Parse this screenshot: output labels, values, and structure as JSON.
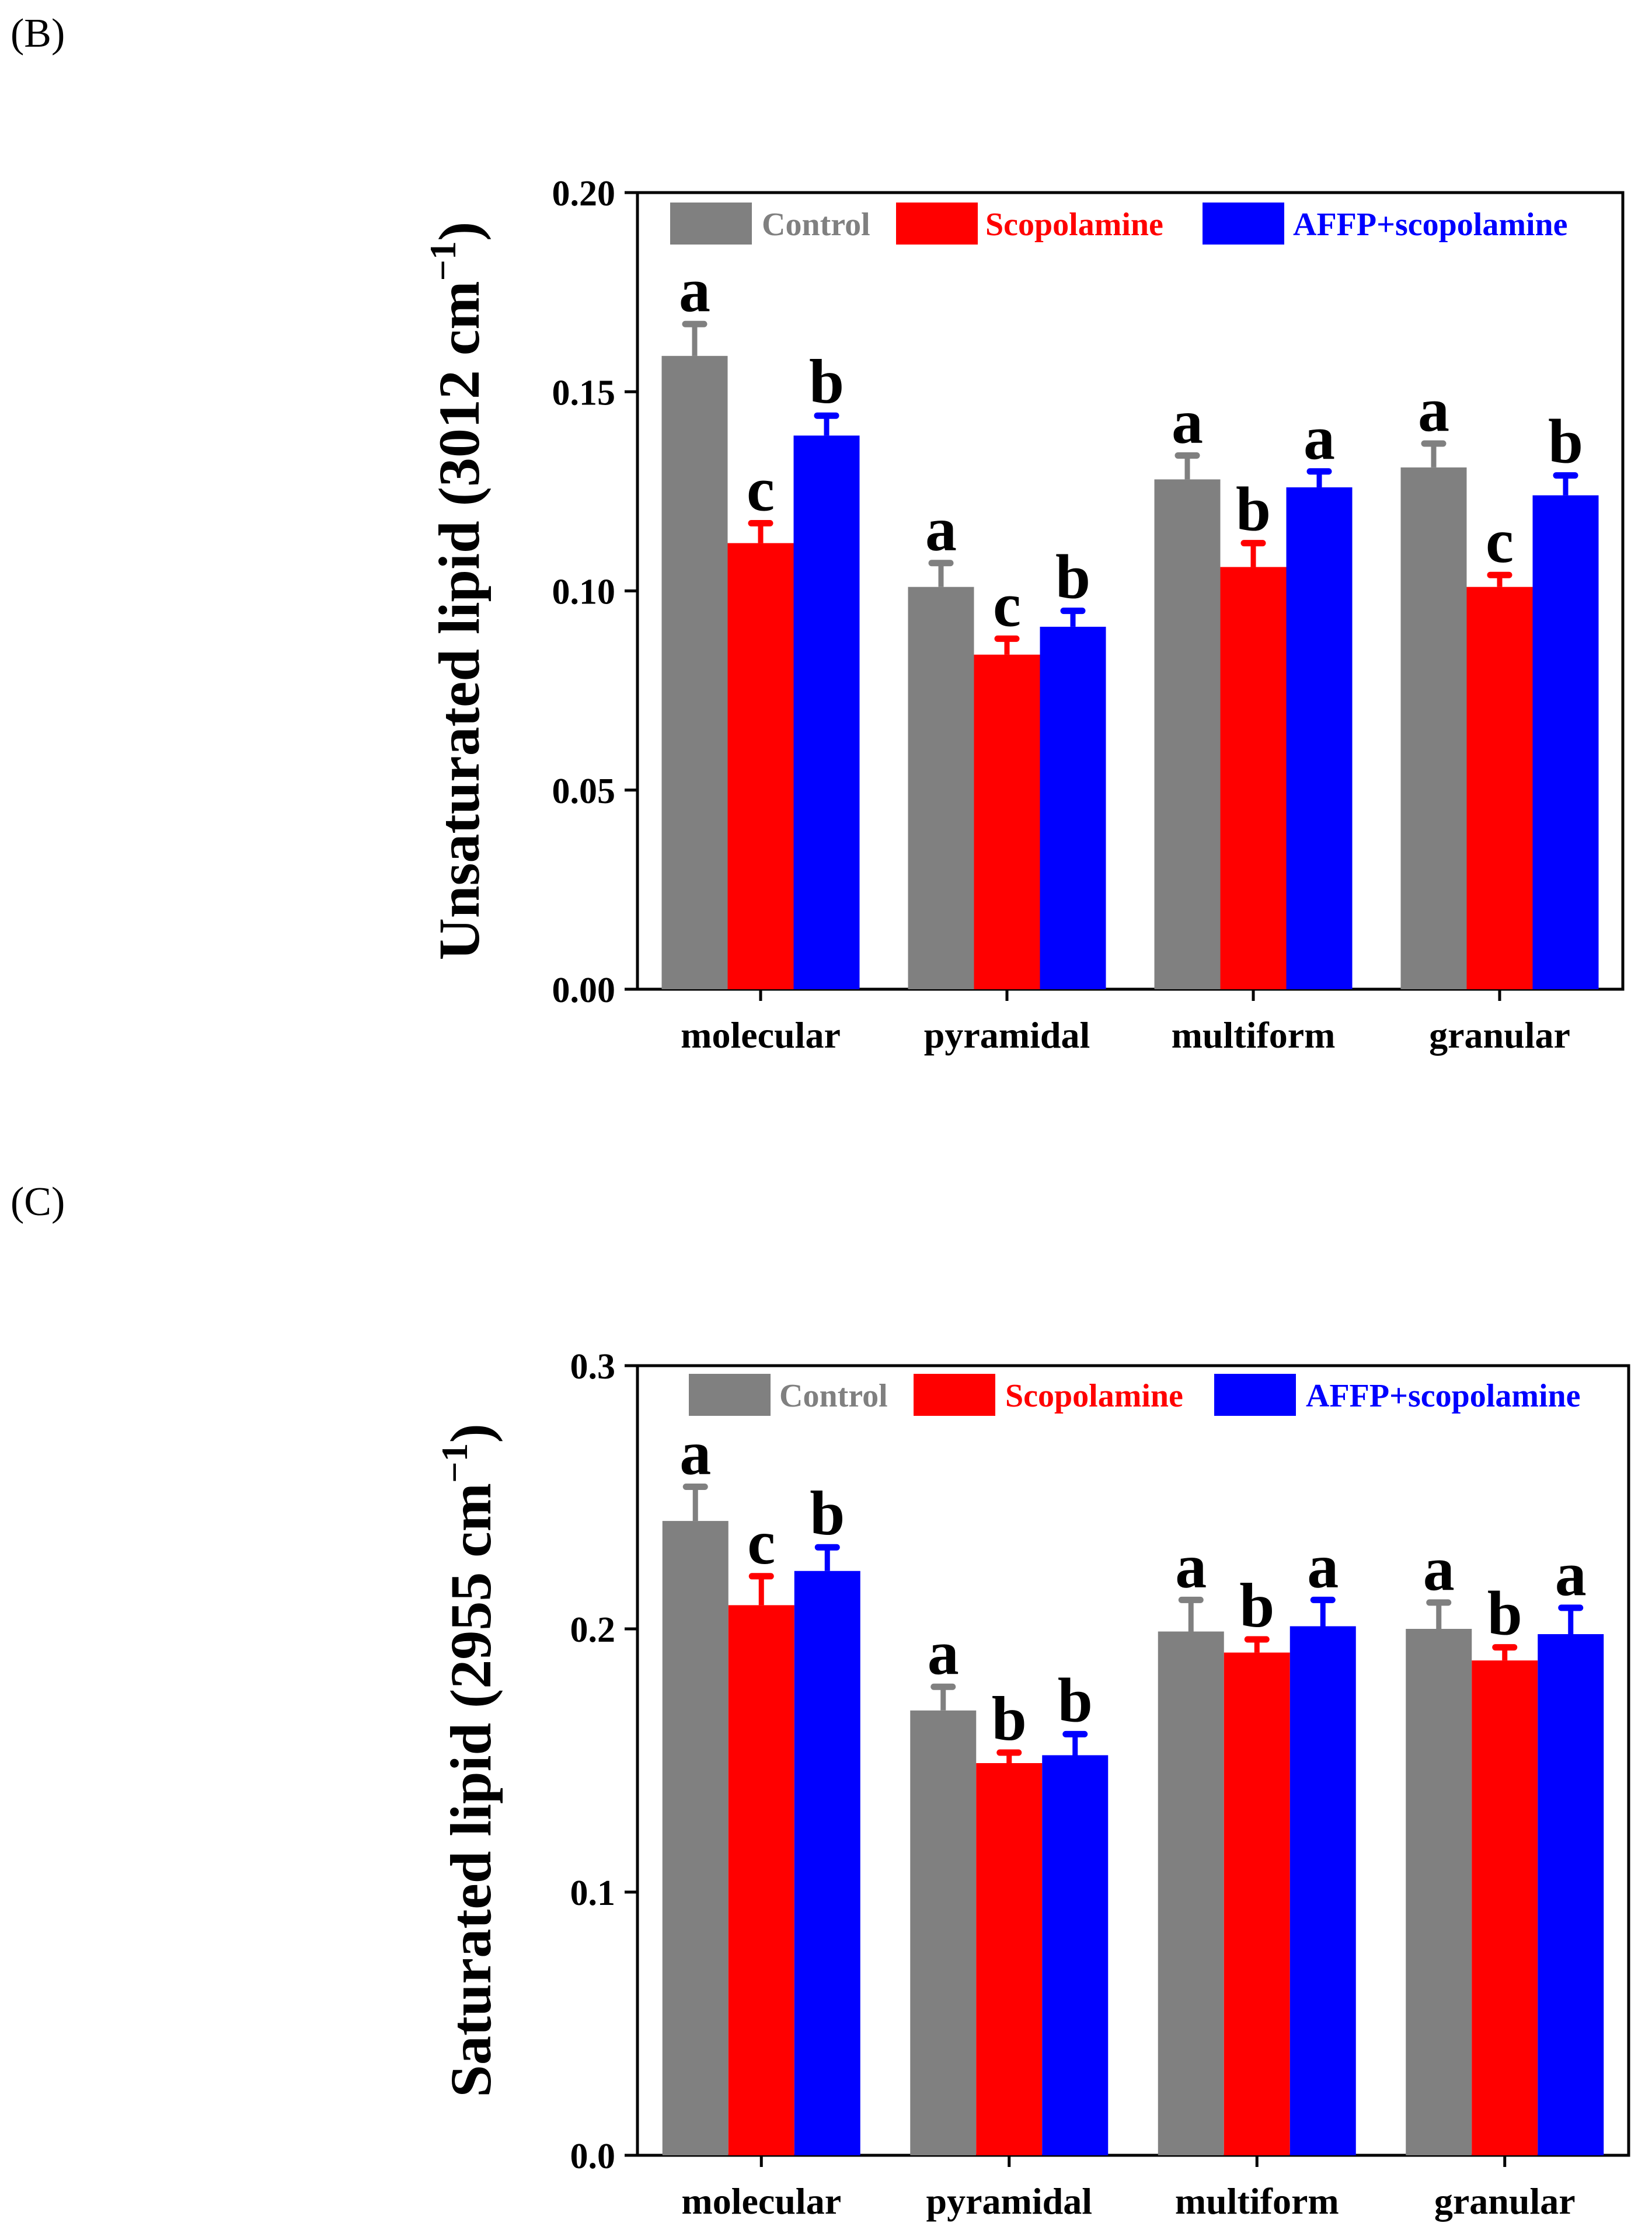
{
  "panels": {
    "b_label": "(B)",
    "c_label": "(C)"
  },
  "chart_data": [
    {
      "type": "bar",
      "panel": "B",
      "ylabel_main": "Unsaturated lipid (3012 cm",
      "ylabel_sup": "−1",
      "ylabel_close": ")",
      "xlabel": "",
      "ylim": [
        0,
        0.2
      ],
      "yticks": [
        "0.00",
        "0.05",
        "0.10",
        "0.15",
        "0.20"
      ],
      "ytick_values": [
        0,
        0.05,
        0.1,
        0.15,
        0.2
      ],
      "categories": [
        "molecular",
        "pyramidal",
        "multiform",
        "granular"
      ],
      "legend_position": "top",
      "series": [
        {
          "name": "Control",
          "color": "#808080",
          "values": [
            0.159,
            0.101,
            0.128,
            0.131
          ],
          "errors": [
            0.008,
            0.006,
            0.006,
            0.006
          ],
          "letters": [
            "a",
            "a",
            "a",
            "a"
          ]
        },
        {
          "name": "Scopolamine",
          "color": "#ff0000",
          "values": [
            0.112,
            0.084,
            0.106,
            0.101
          ],
          "errors": [
            0.005,
            0.004,
            0.006,
            0.003
          ],
          "letters": [
            "c",
            "c",
            "b",
            "c"
          ]
        },
        {
          "name": "AFFP+scopolamine",
          "color": "#0000ff",
          "values": [
            0.139,
            0.091,
            0.126,
            0.124
          ],
          "errors": [
            0.005,
            0.004,
            0.004,
            0.005
          ],
          "letters": [
            "b",
            "b",
            "a",
            "b"
          ]
        }
      ]
    },
    {
      "type": "bar",
      "panel": "C",
      "ylabel_main": "Saturated lipid (2955 cm",
      "ylabel_sup": "−1",
      "ylabel_close": ")",
      "xlabel": "",
      "ylim": [
        0,
        0.3
      ],
      "yticks": [
        "0.0",
        "0.1",
        "0.2",
        "0.3"
      ],
      "ytick_values": [
        0,
        0.1,
        0.2,
        0.3
      ],
      "categories": [
        "molecular",
        "pyramidal",
        "multiform",
        "granular"
      ],
      "legend_position": "top",
      "series": [
        {
          "name": "Control",
          "color": "#808080",
          "values": [
            0.241,
            0.169,
            0.199,
            0.2
          ],
          "errors": [
            0.013,
            0.009,
            0.012,
            0.01
          ],
          "letters": [
            "a",
            "a",
            "a",
            "a"
          ]
        },
        {
          "name": "Scopolamine",
          "color": "#ff0000",
          "values": [
            0.209,
            0.149,
            0.191,
            0.188
          ],
          "errors": [
            0.011,
            0.004,
            0.005,
            0.005
          ],
          "letters": [
            "c",
            "b",
            "b",
            "b"
          ]
        },
        {
          "name": "AFFP+scopolamine",
          "color": "#0000ff",
          "values": [
            0.222,
            0.152,
            0.201,
            0.198
          ],
          "errors": [
            0.009,
            0.008,
            0.01,
            0.01
          ],
          "letters": [
            "b",
            "b",
            "a",
            "a"
          ]
        }
      ]
    }
  ]
}
